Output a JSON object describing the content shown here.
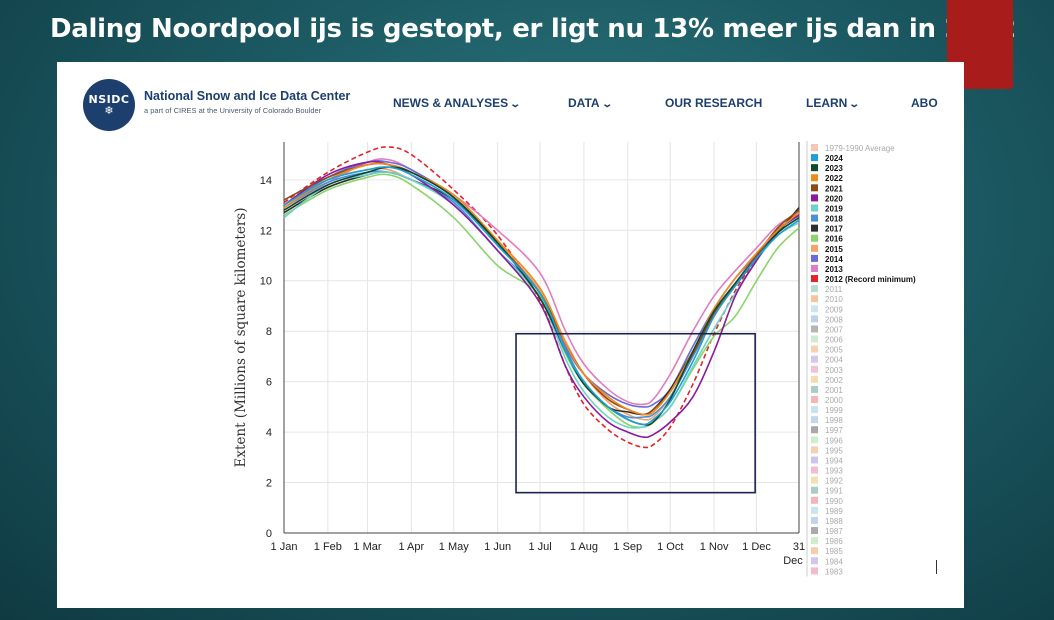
{
  "slide": {
    "title": "Daling Noordpool ijs is gestopt, er ligt nu 13% meer ijs dan in 2012"
  },
  "colors": {
    "slide_accent": "#a81c1c",
    "brand": "#1d3f6e"
  },
  "header": {
    "logo_text": "NSIDC",
    "logo_icon": "snowflake-icon",
    "org_name": "National Snow and Ice Data Center",
    "org_sub": "a part of CIRES at the University of Colorado Boulder",
    "nav": [
      {
        "label": "NEWS & ANALYSES",
        "dropdown": true
      },
      {
        "label": "DATA",
        "dropdown": true
      },
      {
        "label": "OUR RESEARCH",
        "dropdown": false
      },
      {
        "label": "LEARN",
        "dropdown": true
      },
      {
        "label": "ABO",
        "dropdown": false
      }
    ]
  },
  "chart_data": {
    "type": "line",
    "ylabel": "Extent (Millions of square kilometers)",
    "ylim": [
      0,
      15.5
    ],
    "yticks": [
      0,
      2,
      4,
      6,
      8,
      10,
      12,
      14
    ],
    "grid": true,
    "xlim_day": [
      1,
      365
    ],
    "xticks": [
      {
        "label": "1 Jan",
        "day": 1
      },
      {
        "label": "1 Feb",
        "day": 32
      },
      {
        "label": "1 Mar",
        "day": 60
      },
      {
        "label": "1 Apr",
        "day": 91
      },
      {
        "label": "1 May",
        "day": 121
      },
      {
        "label": "1 Jun",
        "day": 152
      },
      {
        "label": "1 Jul",
        "day": 182
      },
      {
        "label": "1 Aug",
        "day": 213
      },
      {
        "label": "1 Sep",
        "day": 244
      },
      {
        "label": "1 Oct",
        "day": 274
      },
      {
        "label": "1 Nov",
        "day": 305
      },
      {
        "label": "1 Dec",
        "day": 335
      },
      {
        "label": "31",
        "label2": "Dec",
        "day": 365
      }
    ],
    "highlight_box": {
      "x_day": [
        165,
        334
      ],
      "y": [
        1.6,
        7.9
      ],
      "color": "#1a2450"
    },
    "legend_position": "right",
    "series": [
      {
        "name": "1979-1990 Average",
        "color": "#f2c7b6",
        "bold": false,
        "highlight": false
      },
      {
        "name": "2024",
        "color": "#1f9fd8",
        "bold": true,
        "highlight": true,
        "x": [
          1,
          32,
          60,
          75,
          91,
          121,
          152,
          182,
          200,
          213,
          230,
          244,
          255,
          262,
          274,
          290,
          305,
          320,
          335,
          350,
          365
        ],
        "y": [
          13.0,
          14.0,
          14.4,
          14.5,
          14.2,
          13.2,
          11.4,
          9.5,
          7.2,
          6.0,
          5.0,
          4.5,
          4.3,
          4.5,
          5.2,
          6.8,
          8.6,
          9.8,
          10.9,
          11.8,
          12.4
        ]
      },
      {
        "name": "2023",
        "color": "#0f4a2a",
        "bold": true,
        "highlight": true,
        "x": [
          1,
          32,
          60,
          75,
          91,
          121,
          152,
          182,
          200,
          213,
          230,
          244,
          255,
          262,
          274,
          290,
          305,
          320,
          335,
          350,
          365
        ],
        "y": [
          12.8,
          13.8,
          14.3,
          14.5,
          14.3,
          13.3,
          11.5,
          9.3,
          7.2,
          5.9,
          5.0,
          4.5,
          4.3,
          4.4,
          5.3,
          7.2,
          8.8,
          9.9,
          10.9,
          11.9,
          12.5
        ]
      },
      {
        "name": "2022",
        "color": "#f08a1c",
        "bold": true,
        "highlight": true,
        "x": [
          1,
          32,
          60,
          75,
          91,
          121,
          152,
          182,
          200,
          213,
          230,
          244,
          255,
          262,
          274,
          290,
          305,
          320,
          335,
          350,
          365
        ],
        "y": [
          12.9,
          14.0,
          14.6,
          14.6,
          14.3,
          13.4,
          11.6,
          9.7,
          7.5,
          6.3,
          5.4,
          4.9,
          4.7,
          4.8,
          5.6,
          7.2,
          8.9,
          10.1,
          11.1,
          12.0,
          12.7
        ]
      },
      {
        "name": "2021",
        "color": "#8b4a16",
        "bold": true,
        "highlight": true,
        "x": [
          1,
          32,
          60,
          75,
          91,
          121,
          152,
          182,
          200,
          213,
          230,
          244,
          255,
          262,
          274,
          290,
          305,
          320,
          335,
          350,
          365
        ],
        "y": [
          13.2,
          14.1,
          14.6,
          14.6,
          14.3,
          13.3,
          11.5,
          9.5,
          7.5,
          6.3,
          5.3,
          4.9,
          4.7,
          4.9,
          5.6,
          7.1,
          8.7,
          9.9,
          11.0,
          12.1,
          12.8
        ]
      },
      {
        "name": "2020",
        "color": "#8a1a9e",
        "bold": true,
        "highlight": true,
        "x": [
          1,
          32,
          60,
          75,
          91,
          121,
          152,
          182,
          200,
          213,
          230,
          244,
          255,
          262,
          274,
          290,
          305,
          320,
          335,
          350,
          365
        ],
        "y": [
          13.0,
          14.2,
          14.7,
          14.6,
          14.2,
          13.0,
          11.2,
          9.1,
          6.6,
          5.4,
          4.4,
          4.0,
          3.8,
          3.9,
          4.4,
          5.4,
          7.2,
          9.4,
          10.8,
          12.0,
          12.6
        ]
      },
      {
        "name": "2019",
        "color": "#6dd3c8",
        "bold": true,
        "highlight": true,
        "x": [
          1,
          32,
          60,
          75,
          91,
          121,
          152,
          182,
          200,
          213,
          230,
          244,
          255,
          262,
          274,
          290,
          305,
          320,
          335,
          350,
          365
        ],
        "y": [
          12.5,
          13.8,
          14.2,
          14.3,
          14.0,
          13.0,
          11.2,
          9.3,
          6.9,
          5.6,
          4.6,
          4.2,
          4.2,
          4.4,
          5.0,
          6.6,
          8.1,
          9.5,
          10.8,
          11.8,
          12.3
        ]
      },
      {
        "name": "2018",
        "color": "#4a8fd8",
        "bold": true,
        "highlight": true,
        "x": [
          1,
          32,
          60,
          75,
          91,
          121,
          152,
          182,
          200,
          213,
          230,
          244,
          255,
          262,
          274,
          290,
          305,
          320,
          335,
          350,
          365
        ],
        "y": [
          12.9,
          13.9,
          14.3,
          14.3,
          14.0,
          13.1,
          11.2,
          9.5,
          7.3,
          6.0,
          5.0,
          4.6,
          4.6,
          4.7,
          5.4,
          7.0,
          8.6,
          9.9,
          11.0,
          12.0,
          12.6
        ]
      },
      {
        "name": "2017",
        "color": "#2e2e2e",
        "bold": true,
        "highlight": true,
        "x": [
          1,
          32,
          60,
          75,
          91,
          121,
          152,
          182,
          200,
          213,
          230,
          244,
          255,
          262,
          274,
          290,
          305,
          320,
          335,
          350,
          365
        ],
        "y": [
          12.7,
          13.7,
          14.2,
          14.3,
          14.0,
          13.2,
          11.5,
          9.3,
          7.2,
          6.0,
          5.0,
          4.8,
          4.7,
          4.9,
          5.7,
          7.2,
          8.7,
          9.8,
          10.9,
          11.9,
          12.9
        ]
      },
      {
        "name": "2016",
        "color": "#8cd46a",
        "bold": true,
        "highlight": true,
        "x": [
          1,
          32,
          60,
          75,
          91,
          121,
          152,
          182,
          200,
          213,
          230,
          244,
          255,
          262,
          274,
          290,
          305,
          320,
          335,
          350,
          365
        ],
        "y": [
          12.6,
          13.6,
          14.1,
          14.2,
          13.8,
          12.5,
          10.6,
          9.4,
          7.1,
          5.9,
          4.9,
          4.3,
          4.2,
          4.4,
          5.0,
          6.5,
          7.8,
          8.6,
          10.0,
          11.3,
          12.1
        ]
      },
      {
        "name": "2015",
        "color": "#f4a46a",
        "bold": true,
        "highlight": true,
        "x": [
          1,
          32,
          60,
          75,
          91,
          121,
          152,
          182,
          200,
          213,
          230,
          244,
          255,
          262,
          274,
          290,
          305,
          320,
          335,
          350,
          365
        ],
        "y": [
          13.0,
          14.0,
          14.4,
          14.4,
          14.0,
          13.2,
          11.5,
          9.6,
          7.6,
          6.3,
          5.2,
          4.7,
          4.5,
          4.6,
          5.4,
          7.0,
          8.6,
          9.8,
          10.9,
          11.9,
          12.5
        ]
      },
      {
        "name": "2014",
        "color": "#6a6ad8",
        "bold": true,
        "highlight": true,
        "x": [
          1,
          32,
          60,
          75,
          91,
          121,
          152,
          182,
          200,
          213,
          230,
          244,
          255,
          262,
          274,
          290,
          305,
          320,
          335,
          350,
          365
        ],
        "y": [
          13.0,
          14.1,
          14.7,
          14.7,
          14.4,
          13.3,
          11.4,
          9.6,
          7.4,
          6.3,
          5.5,
          5.1,
          5.0,
          5.1,
          5.7,
          7.4,
          8.9,
          10.1,
          11.0,
          12.0,
          12.6
        ]
      },
      {
        "name": "2013",
        "color": "#e07cc0",
        "bold": true,
        "highlight": true,
        "x": [
          1,
          32,
          60,
          75,
          91,
          121,
          152,
          182,
          200,
          213,
          230,
          244,
          255,
          262,
          274,
          290,
          305,
          320,
          335,
          350,
          365
        ],
        "y": [
          12.9,
          13.9,
          14.7,
          14.8,
          14.4,
          13.4,
          12.0,
          10.3,
          8.0,
          6.7,
          5.7,
          5.2,
          5.1,
          5.3,
          6.3,
          8.0,
          9.4,
          10.4,
          11.3,
          12.2,
          12.7
        ]
      },
      {
        "name": "2012 (Record minimum)",
        "color": "#e3242b",
        "bold": true,
        "highlight": true,
        "dashed": true,
        "x": [
          1,
          32,
          60,
          75,
          91,
          121,
          152,
          182,
          200,
          213,
          230,
          244,
          255,
          262,
          274,
          290,
          305,
          320,
          335,
          350,
          365
        ],
        "y": [
          13.1,
          14.3,
          15.1,
          15.3,
          15.0,
          13.6,
          11.8,
          9.2,
          6.6,
          5.1,
          4.1,
          3.6,
          3.4,
          3.5,
          4.2,
          5.9,
          7.9,
          9.6,
          10.9,
          12.0,
          12.7
        ]
      },
      {
        "name": "2011",
        "color": "#b7dccf",
        "bold": false,
        "highlight": false
      },
      {
        "name": "2010",
        "color": "#f4c3a1",
        "bold": false,
        "highlight": false
      },
      {
        "name": "2009",
        "color": "#cfe3f0",
        "bold": false,
        "highlight": false
      },
      {
        "name": "2008",
        "color": "#bcd2ec",
        "bold": false,
        "highlight": false
      },
      {
        "name": "2007",
        "color": "#b5b5b5",
        "bold": false,
        "highlight": false
      },
      {
        "name": "2006",
        "color": "#cfeccf",
        "bold": false,
        "highlight": false
      },
      {
        "name": "2005",
        "color": "#f7d0b2",
        "bold": false,
        "highlight": false
      },
      {
        "name": "2004",
        "color": "#d3c7ec",
        "bold": false,
        "highlight": false
      },
      {
        "name": "2003",
        "color": "#f4c0d8",
        "bold": false,
        "highlight": false
      },
      {
        "name": "2002",
        "color": "#f2ddb0",
        "bold": false,
        "highlight": false
      },
      {
        "name": "2001",
        "color": "#a9cfc4",
        "bold": false,
        "highlight": false
      },
      {
        "name": "2000",
        "color": "#f4b7b7",
        "bold": false,
        "highlight": false
      },
      {
        "name": "1999",
        "color": "#c6e3ef",
        "bold": false,
        "highlight": false
      },
      {
        "name": "1998",
        "color": "#c2d6ee",
        "bold": false,
        "highlight": false
      },
      {
        "name": "1997",
        "color": "#a8a8a8",
        "bold": false,
        "highlight": false
      },
      {
        "name": "1996",
        "color": "#cfeeca",
        "bold": false,
        "highlight": false
      },
      {
        "name": "1995",
        "color": "#f7cfae",
        "bold": false,
        "highlight": false
      },
      {
        "name": "1994",
        "color": "#cdc6ec",
        "bold": false,
        "highlight": false
      },
      {
        "name": "1993",
        "color": "#f4bad3",
        "bold": false,
        "highlight": false
      },
      {
        "name": "1992",
        "color": "#f1e0b6",
        "bold": false,
        "highlight": false
      },
      {
        "name": "1991",
        "color": "#a7cfc3",
        "bold": false,
        "highlight": false
      },
      {
        "name": "1990",
        "color": "#f4b5b5",
        "bold": false,
        "highlight": false
      },
      {
        "name": "1989",
        "color": "#c8e6f1",
        "bold": false,
        "highlight": false
      },
      {
        "name": "1988",
        "color": "#c0d4ee",
        "bold": false,
        "highlight": false
      },
      {
        "name": "1987",
        "color": "#aaaaaa",
        "bold": false,
        "highlight": false
      },
      {
        "name": "1986",
        "color": "#cdeec8",
        "bold": false,
        "highlight": false
      },
      {
        "name": "1985",
        "color": "#f6ceac",
        "bold": false,
        "highlight": false
      },
      {
        "name": "1984",
        "color": "#d0c8ec",
        "bold": false,
        "highlight": false
      },
      {
        "name": "1983",
        "color": "#f4b8d0",
        "bold": false,
        "highlight": false
      }
    ]
  }
}
